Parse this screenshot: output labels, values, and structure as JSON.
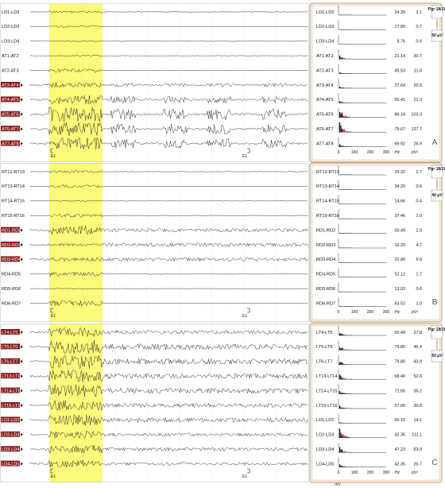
{
  "panels": [
    {
      "id": "A",
      "letter": "A",
      "badge_top": "Pgr 18/18",
      "badge_bottom": "50 μV",
      "event_label_1": "E1",
      "event_label_2": "E1",
      "channels": [
        {
          "name": "LD1-LD2",
          "hi": false,
          "amp": 24.39,
          "pow": 3.1
        },
        {
          "name": "LD2-LD3",
          "hi": false,
          "amp": 17.89,
          "pow": 0.7
        },
        {
          "name": "LD3-LD4",
          "hi": false,
          "amp": 9.76,
          "pow": 0.4
        },
        {
          "name": "AT1-AT2",
          "hi": false,
          "amp": 21.14,
          "pow": 30.7
        },
        {
          "name": "AT2-AT3",
          "hi": false,
          "amp": 45.53,
          "pow": 11.8
        },
        {
          "name": "AT3-AT4",
          "hi": true,
          "amp": 27.64,
          "pow": 20.9
        },
        {
          "name": "AT4-AT5",
          "hi": true,
          "amp": 50.41,
          "pow": 21.3
        },
        {
          "name": "AT5-AT6",
          "hi": true,
          "amp": 86.18,
          "pow": 103.3
        },
        {
          "name": "AT6-AT7",
          "hi": true,
          "amp": 79.67,
          "pow": 137.7
        },
        {
          "name": "AT7-AT8",
          "hi": true,
          "amp": 69.92,
          "pow": 26.9
        }
      ]
    },
    {
      "id": "B",
      "letter": "B",
      "badge_top": "Pgr 18/18",
      "badge_bottom": "40 μV",
      "event_label_1": "E1",
      "event_label_2": "E1",
      "channels": [
        {
          "name": "RT12-RT13",
          "hi": false,
          "amp": 29.32,
          "pow": 2.7
        },
        {
          "name": "RT13-RT14",
          "hi": false,
          "amp": 34.2,
          "pow": 0.6
        },
        {
          "name": "RT14-RT15",
          "hi": false,
          "amp": 14.66,
          "pow": 0.4
        },
        {
          "name": "RT15-RT16",
          "hi": false,
          "amp": 37.46,
          "pow": 1.0
        },
        {
          "name": "RD1-RD2",
          "hi": true,
          "amp": 50.49,
          "pow": 2.0
        },
        {
          "name": "RD2-RD3",
          "hi": true,
          "amp": 16.29,
          "pow": 4.7
        },
        {
          "name": "RD3-RD4",
          "hi": true,
          "amp": 22.8,
          "pow": 6.6
        },
        {
          "name": "RD4-RD5",
          "hi": false,
          "amp": 52.12,
          "pow": 1.7
        },
        {
          "name": "RD5-RD6",
          "hi": false,
          "amp": 13.03,
          "pow": 0.6
        },
        {
          "name": "RD6-RD7",
          "hi": false,
          "amp": 63.52,
          "pow": 1.0
        }
      ]
    },
    {
      "id": "C",
      "letter": "C",
      "badge_top": "Pgr 18/18",
      "badge_bottom": "50 μV",
      "event_label_1": "E1",
      "event_label_2": "E1",
      "channels": [
        {
          "name": "LT4-LT5",
          "hi": true,
          "amp": 50.49,
          "pow": 27.8
        },
        {
          "name": "LT5-LT6",
          "hi": true,
          "amp": 79.8,
          "pow": 45.4
        },
        {
          "name": "LT6-LT7",
          "hi": true,
          "amp": 79.8,
          "pow": 43.8
        },
        {
          "name": "LT13-LT14",
          "hi": true,
          "amp": 68.4,
          "pow": 52.6
        },
        {
          "name": "LT14-LT15",
          "hi": true,
          "amp": 71.66,
          "pow": 36.2
        },
        {
          "name": "LT15-LT16",
          "hi": true,
          "amp": 57.0,
          "pow": 30.8
        },
        {
          "name": "LD1-LD2",
          "hi": true,
          "amp": 65.15,
          "pow": 14.1
        },
        {
          "name": "LD2-LD3",
          "hi": true,
          "amp": 42.35,
          "pow": 111.1
        },
        {
          "name": "LD3-LD4",
          "hi": true,
          "amp": 47.23,
          "pow": 53.9
        },
        {
          "name": "LD4-LD5",
          "hi": true,
          "amp": 42.35,
          "pow": 26.7
        }
      ]
    }
  ],
  "axis": {
    "ticks": [
      "0",
      "100",
      "200",
      "300"
    ],
    "hz_label": "Hz",
    "pv_label": "pV²",
    "bottom_label": "mV"
  },
  "colors": {
    "highlight": "#fbfa7a",
    "spectra_bg": "#f7ebdb",
    "spectra_border": "#b9a47e",
    "label_hi_bg": "#8b1d1d",
    "spectrum_red": "#d01818"
  }
}
